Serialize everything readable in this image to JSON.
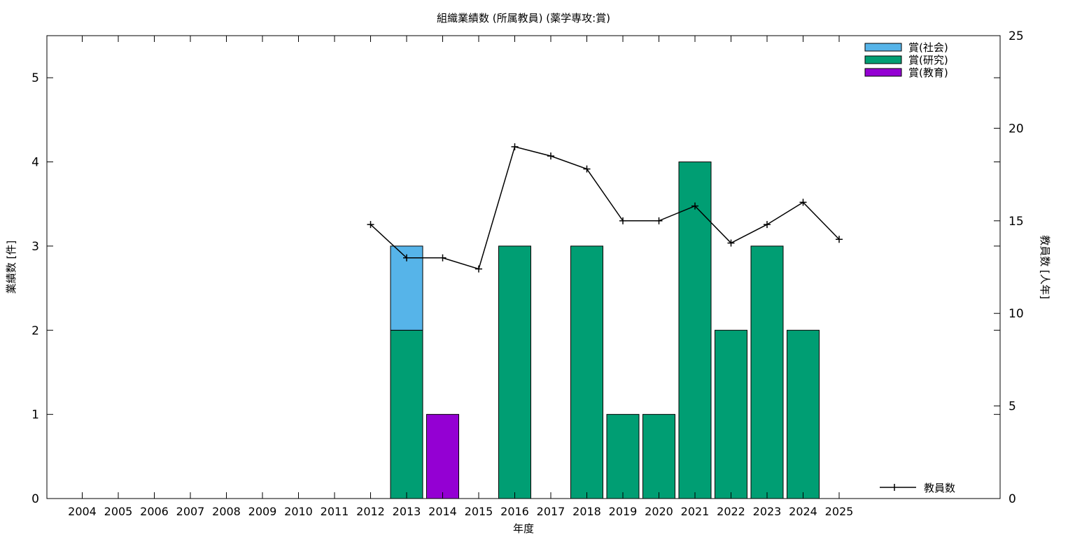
{
  "chart_data": {
    "type": "bar",
    "title": "組織業績数 (所属教員) (薬学専攻:賞)",
    "xlabel": "年度",
    "ylabel": "業績数 [件]",
    "y2label": "教員数 [人年]",
    "ylim": [
      0,
      5.5
    ],
    "y2lim": [
      0,
      25
    ],
    "yticks": [
      0,
      1,
      2,
      3,
      4,
      5
    ],
    "y2ticks": [
      0,
      5,
      10,
      15,
      20,
      25
    ],
    "grid": false,
    "legend_position": "top-right",
    "categories": [
      "2004",
      "2005",
      "2006",
      "2007",
      "2008",
      "2009",
      "2010",
      "2011",
      "2012",
      "2013",
      "2014",
      "2015",
      "2016",
      "2017",
      "2018",
      "2019",
      "2020",
      "2021",
      "2022",
      "2023",
      "2024",
      "2025"
    ],
    "stacked": true,
    "series": [
      {
        "name": "賞(研究)",
        "color": "#009e73",
        "values": [
          0,
          0,
          0,
          0,
          0,
          0,
          0,
          0,
          0,
          2,
          0,
          0,
          3,
          0,
          3,
          1,
          1,
          4,
          2,
          3,
          2,
          0
        ]
      },
      {
        "name": "賞(教育)",
        "color": "#9400d3",
        "values": [
          0,
          0,
          0,
          0,
          0,
          0,
          0,
          0,
          0,
          0,
          1,
          0,
          0,
          0,
          0,
          0,
          0,
          0,
          0,
          0,
          0,
          0
        ]
      },
      {
        "name": "賞(社会)",
        "color": "#56b4e9",
        "values": [
          0,
          0,
          0,
          0,
          0,
          0,
          0,
          0,
          0,
          1,
          0,
          0,
          0,
          0,
          0,
          0,
          0,
          0,
          0,
          0,
          0,
          0
        ]
      }
    ],
    "legend_order": [
      "賞(社会)",
      "賞(研究)",
      "賞(教育)"
    ],
    "line_series": {
      "name": "教員数",
      "axis": "y2",
      "color": "#000000",
      "x": [
        "2012",
        "2013",
        "2014",
        "2015",
        "2016",
        "2017",
        "2018",
        "2019",
        "2020",
        "2021",
        "2022",
        "2023",
        "2024",
        "2025"
      ],
      "values": [
        14.8,
        13.0,
        13.0,
        12.4,
        19.0,
        18.5,
        17.8,
        15.0,
        15.0,
        15.8,
        13.8,
        14.8,
        16.0,
        14.0
      ]
    }
  }
}
